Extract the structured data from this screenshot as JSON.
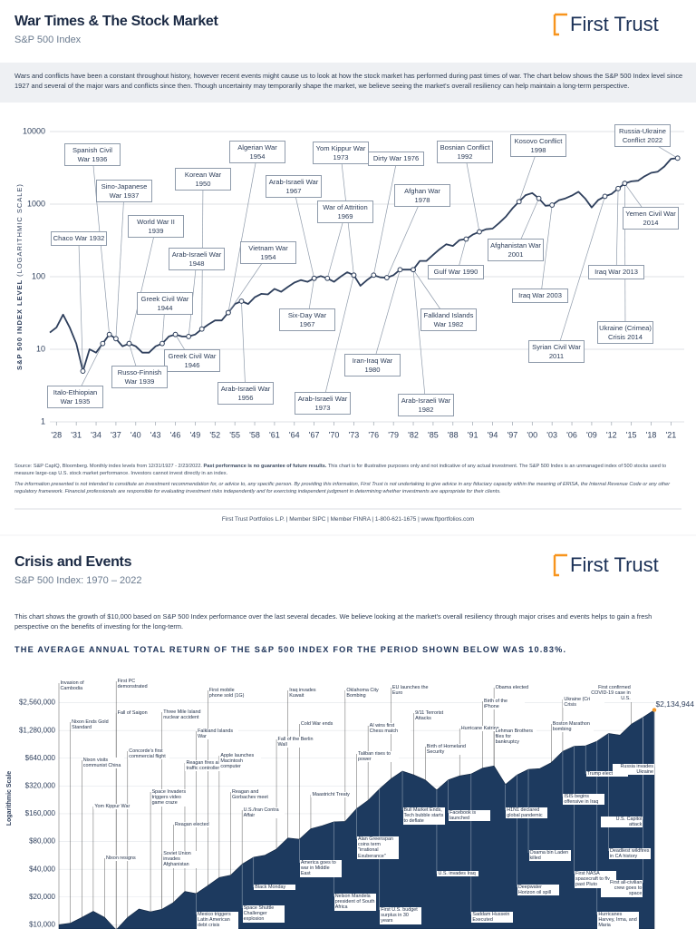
{
  "header": {
    "title": "War Times & The Stock Market",
    "subtitle": "S&P 500 Index",
    "logo": "First Trust"
  },
  "intro": "Wars and conflicts have been a constant throughout history, however recent events might cause us to look at how the stock market has performed during past times of war. The chart below shows the S&P 500 Index level since 1927 and several of the major wars and conflicts since then. Though uncertainty may temporarily shape the market, we believe seeing the market's overall resiliency can help maintain a long-term perspective.",
  "source_a": "Source: S&P CapIQ, Bloomberg. Monthly index levels from 12/31/1927 - 2/23/2022.",
  "source_bold": "Past performance is no guarantee of future results.",
  "source_b": "This chart is for illustrative purposes only and not indicative of any actual investment. The S&P 500 Index is an unmanaged index of 500 stocks used to measure large-cap U.S. stock market performance. Investors cannot invest directly in an index.",
  "disclaimer": "The information presented is not intended to constitute an investment recommendation for, or advice to, any specific person. By providing this information, First Trust is not undertaking to give advice in any fiduciary capacity within the meaning of ERISA, the Internal Revenue Code or any other regulatory framework. Financial professionals are responsible for evaluating investment risks independently and for exercising independent judgment in determining whether investments are appropriate for their clients.",
  "footer": "First Trust Portfolios L.P. | Member SIPC | Member FINRA | 1-800-621-1675 | www.ftportfolios.com",
  "section2": {
    "title": "Crisis and Events",
    "subtitle": "S&P 500 Index: 1970 – 2022",
    "logo": "First Trust",
    "intro": "This chart shows the growth of $10,000 based on S&P 500 Index performance over the last several decades. We believe looking at the market's overall resiliency through major crises and events helps to gain a fresh perspective on the benefits of investing for the long-term.",
    "headline": "THE AVERAGE ANNUAL TOTAL RETURN OF THE S&P 500 INDEX FOR THE PERIOD SHOWN BELOW WAS 10.83%."
  },
  "chart_data": [
    {
      "type": "line",
      "log_scale": true,
      "grid": true,
      "color": "#2e3f5c",
      "y_label": "S&P 500 INDEX LEVEL",
      "y_label_note": "(LOGARITHMIC SCALE)",
      "x": [
        1927,
        1928,
        1929,
        1930,
        1931,
        1932,
        1933,
        1934,
        1935,
        1936,
        1937,
        1938,
        1939,
        1940,
        1941,
        1942,
        1943,
        1944,
        1945,
        1946,
        1947,
        1948,
        1949,
        1950,
        1951,
        1952,
        1953,
        1954,
        1955,
        1956,
        1957,
        1958,
        1959,
        1960,
        1961,
        1962,
        1963,
        1964,
        1965,
        1966,
        1967,
        1968,
        1969,
        1970,
        1971,
        1972,
        1973,
        1974,
        1975,
        1976,
        1977,
        1978,
        1979,
        1980,
        1981,
        1982,
        1983,
        1984,
        1985,
        1986,
        1987,
        1988,
        1989,
        1990,
        1991,
        1992,
        1993,
        1994,
        1995,
        1996,
        1997,
        1998,
        1999,
        2000,
        2001,
        2002,
        2003,
        2004,
        2005,
        2006,
        2007,
        2008,
        2009,
        2010,
        2011,
        2012,
        2013,
        2014,
        2015,
        2016,
        2017,
        2018,
        2019,
        2020,
        2021,
        2022
      ],
      "values": [
        17,
        20,
        30,
        20,
        12,
        5,
        10,
        9,
        12,
        16,
        14,
        11,
        12,
        11,
        9,
        9,
        11,
        12,
        15,
        16,
        15,
        15,
        16,
        19,
        22,
        25,
        25,
        32,
        42,
        46,
        42,
        52,
        58,
        57,
        68,
        62,
        72,
        83,
        90,
        85,
        95,
        102,
        95,
        85,
        100,
        115,
        105,
        75,
        90,
        105,
        98,
        97,
        105,
        125,
        125,
        125,
        165,
        165,
        200,
        240,
        280,
        265,
        320,
        330,
        380,
        415,
        450,
        460,
        550,
        670,
        870,
        1080,
        1330,
        1420,
        1200,
        950,
        970,
        1130,
        1200,
        1310,
        1480,
        1200,
        900,
        1140,
        1280,
        1380,
        1640,
        1930,
        2060,
        2100,
        2420,
        2700,
        2800,
        3300,
        4200,
        4300
      ],
      "xlim": [
        1927,
        2023
      ],
      "ylim": [
        1,
        10000
      ],
      "yticks": [
        1,
        10,
        100,
        1000,
        10000
      ],
      "xticks": [
        {
          "value": 1928,
          "label": "'28"
        },
        {
          "value": 1931,
          "label": "'31"
        },
        {
          "value": 1934,
          "label": "'34"
        },
        {
          "value": 1937,
          "label": "'37"
        },
        {
          "value": 1940,
          "label": "'40"
        },
        {
          "value": 1943,
          "label": "'43"
        },
        {
          "value": 1946,
          "label": "'46"
        },
        {
          "value": 1949,
          "label": "'49"
        },
        {
          "value": 1952,
          "label": "'52"
        },
        {
          "value": 1955,
          "label": "'55"
        },
        {
          "value": 1958,
          "label": "'58"
        },
        {
          "value": 1961,
          "label": "'61"
        },
        {
          "value": 1964,
          "label": "'64"
        },
        {
          "value": 1967,
          "label": "'67"
        },
        {
          "value": 1970,
          "label": "'70"
        },
        {
          "value": 1973,
          "label": "'73"
        },
        {
          "value": 1976,
          "label": "'76"
        },
        {
          "value": 1979,
          "label": "'79"
        },
        {
          "value": 1982,
          "label": "'82"
        },
        {
          "value": 1985,
          "label": "'85"
        },
        {
          "value": 1988,
          "label": "'88"
        },
        {
          "value": 1991,
          "label": "'91"
        },
        {
          "value": 1994,
          "label": "'94"
        },
        {
          "value": 1997,
          "label": "'97"
        },
        {
          "value": 2000,
          "label": "'00"
        },
        {
          "value": 2003,
          "label": "'03"
        },
        {
          "value": 2006,
          "label": "'06"
        },
        {
          "value": 2009,
          "label": "'09"
        },
        {
          "value": 2012,
          "label": "'12"
        },
        {
          "value": 2015,
          "label": "'15"
        },
        {
          "value": 2018,
          "label": "'18"
        },
        {
          "value": 2021,
          "label": "'21"
        }
      ],
      "annotations": [
        {
          "label": "Spanish Civil War 1936",
          "x": 1936
        },
        {
          "label": "Sino-Japanese War 1937",
          "x": 1937
        },
        {
          "label": "Chaco War 1932",
          "x": 1932
        },
        {
          "label": "World War II 1939",
          "x": 1939
        },
        {
          "label": "Korean War 1950",
          "x": 1950
        },
        {
          "label": "Algerian War 1954",
          "x": 1954
        },
        {
          "label": "Arab-Israeli War 1948",
          "x": 1948
        },
        {
          "label": "Greek Civil War 1944",
          "x": 1944
        },
        {
          "label": "Vietnam War 1954",
          "x": 1954
        },
        {
          "label": "Arab-Israeli War 1967",
          "x": 1967
        },
        {
          "label": "Yom Kippur War 1973",
          "x": 1973
        },
        {
          "label": "War of Attrition 1969",
          "x": 1969
        },
        {
          "label": "Dirty War 1976",
          "x": 1976
        },
        {
          "label": "Afghan War 1978",
          "x": 1978
        },
        {
          "label": "Bosnian Conflict 1992",
          "x": 1992
        },
        {
          "label": "Kosovo Conflict 1998",
          "x": 1998
        },
        {
          "label": "Russia-Ukraine Conflict 2022",
          "x": 2022
        },
        {
          "label": "Yemen Civil War 2014",
          "x": 2014
        },
        {
          "label": "Afghanistan War 2001",
          "x": 2001
        },
        {
          "label": "Gulf War 1990",
          "x": 1990
        },
        {
          "label": "Iraq War 2013",
          "x": 2013
        },
        {
          "label": "Iraq War 2003",
          "x": 2003
        },
        {
          "label": "Six-Day War 1967",
          "x": 1967
        },
        {
          "label": "Falkland Islands War 1982",
          "x": 1982
        },
        {
          "label": "Ukraine (Crimea) Crisis 2014",
          "x": 2014
        },
        {
          "label": "Syrian Civil War 2011",
          "x": 2011
        },
        {
          "label": "Iran-Iraq War 1980",
          "x": 1980
        },
        {
          "label": "Greek Civil War 1946",
          "x": 1946
        },
        {
          "label": "Russo-Finnish War 1939",
          "x": 1939
        },
        {
          "label": "Italo-Ethiopian War 1935",
          "x": 1935
        },
        {
          "label": "Arab-Israeli War 1956",
          "x": 1956
        },
        {
          "label": "Arab-Israeli War 1973",
          "x": 1973
        },
        {
          "label": "Arab-Israeli War 1982",
          "x": 1982
        }
      ]
    },
    {
      "type": "area",
      "log_scale": true,
      "grid": true,
      "color": "#1d3a5f",
      "highlight_color": "#f7941d",
      "y_label": "Logarithmic Scale",
      "x": [
        1970,
        1971,
        1972,
        1973,
        1974,
        1975,
        1976,
        1977,
        1978,
        1979,
        1980,
        1981,
        1982,
        1983,
        1984,
        1985,
        1986,
        1987,
        1988,
        1989,
        1990,
        1991,
        1992,
        1993,
        1994,
        1995,
        1996,
        1997,
        1998,
        1999,
        2000,
        2001,
        2002,
        2003,
        2004,
        2005,
        2006,
        2007,
        2008,
        2009,
        2010,
        2011,
        2012,
        2013,
        2014,
        2015,
        2016,
        2017,
        2018,
        2019,
        2020,
        2021,
        2022
      ],
      "values": [
        10000,
        10400,
        12000,
        14000,
        12000,
        8800,
        12000,
        14800,
        13800,
        14700,
        17400,
        23000,
        21800,
        26500,
        32500,
        34500,
        45500,
        54000,
        56800,
        66200,
        87200,
        84500,
        110000,
        118500,
        130500,
        132000,
        181500,
        223000,
        297500,
        382500,
        463000,
        421000,
        371000,
        289000,
        372000,
        412000,
        432000,
        500000,
        528000,
        333000,
        421000,
        484000,
        494000,
        574000,
        759000,
        862000,
        874000,
        979000,
        1190000,
        1140000,
        1500000,
        1770000,
        2134944
      ],
      "value_labels": [
        null,
        null,
        null,
        null,
        null,
        null,
        null,
        null,
        null,
        null,
        null,
        null,
        null,
        null,
        null,
        null,
        null,
        null,
        null,
        null,
        null,
        null,
        null,
        null,
        null,
        null,
        null,
        null,
        null,
        null,
        null,
        null,
        null,
        null,
        null,
        null,
        null,
        null,
        null,
        null,
        null,
        null,
        null,
        null,
        null,
        null,
        null,
        null,
        null,
        null,
        null,
        null,
        "$2,134,944"
      ],
      "xlim": [
        1970,
        2022
      ],
      "ylim": [
        9000,
        5000000
      ],
      "yticks": [
        {
          "value": 10000,
          "label": "$10,000"
        },
        {
          "value": 20000,
          "label": "$20,000"
        },
        {
          "value": 40000,
          "label": "$40,000"
        },
        {
          "value": 80000,
          "label": "$80,000"
        },
        {
          "value": 160000,
          "label": "$160,000"
        },
        {
          "value": 320000,
          "label": "$320,000"
        },
        {
          "value": 640000,
          "label": "$640,000"
        },
        {
          "value": 1280000,
          "label": "$1,280,000"
        },
        {
          "value": 2560000,
          "label": "$2,560,000"
        }
      ],
      "annotations": [
        {
          "label": "Invasion of Cambodia",
          "x": 1970
        },
        {
          "label": "Nixon Ends Gold Standard",
          "x": 1971
        },
        {
          "label": "Nixon visits communist China",
          "x": 1972
        },
        {
          "label": "Yom Kippur War",
          "x": 1973
        },
        {
          "label": "Nixon resigns",
          "x": 1974
        },
        {
          "label": "Fall of Saigon",
          "x": 1975
        },
        {
          "label": "First PC demonstrated",
          "x": 1975
        },
        {
          "label": "Concorde's first commercial flight",
          "x": 1976
        },
        {
          "label": "Space Invaders triggers video game craze",
          "x": 1978
        },
        {
          "label": "Three Mile Island nuclear accident",
          "x": 1979
        },
        {
          "label": "Soviet Union invades Afghanistan",
          "x": 1979
        },
        {
          "label": "Reagan elected",
          "x": 1980
        },
        {
          "label": "Reagan fires air traffic controllers",
          "x": 1981
        },
        {
          "label": "Falkland Islands War",
          "x": 1982
        },
        {
          "label": "Mexico triggers Latin American debt crisis",
          "x": 1982
        },
        {
          "label": "First mobile phone sold (1G)",
          "x": 1983
        },
        {
          "label": "Apple launches Macintosh computer",
          "x": 1984
        },
        {
          "label": "Reagan and Gorbachev meet",
          "x": 1985
        },
        {
          "label": "Space Shuttle Challenger explosion",
          "x": 1986
        },
        {
          "label": "U.S./Iran Contra Affair",
          "x": 1986
        },
        {
          "label": "Black Monday",
          "x": 1987
        },
        {
          "label": "Fall of the Berlin Wall",
          "x": 1989
        },
        {
          "label": "Iraq invades Kuwait",
          "x": 1990
        },
        {
          "label": "America goes to war in Middle East",
          "x": 1991
        },
        {
          "label": "Cold War ends",
          "x": 1991
        },
        {
          "label": "Maastricht Treaty",
          "x": 1992
        },
        {
          "label": "Nelson Mandela president of South Africa",
          "x": 1994
        },
        {
          "label": "Oklahoma City Bombing",
          "x": 1995
        },
        {
          "label": "Taliban rises to power",
          "x": 1996
        },
        {
          "label": "Alan Greenspan coins term \"irrational Exuberance\"",
          "x": 1996
        },
        {
          "label": "AI wins first Chess match",
          "x": 1997
        },
        {
          "label": "First U.S. budget surplus in 30 years",
          "x": 1998
        },
        {
          "label": "EU launches the Euro",
          "x": 1999
        },
        {
          "label": "Bull Market Ends, Tech bubble starts to deflate",
          "x": 2000
        },
        {
          "label": "9/11 Terrorist Attacks",
          "x": 2001
        },
        {
          "label": "Birth of Homeland Security",
          "x": 2002
        },
        {
          "label": "U.S. invades Iraq",
          "x": 2003
        },
        {
          "label": "Facebook is launched",
          "x": 2004
        },
        {
          "label": "Hurricane Katrina",
          "x": 2005
        },
        {
          "label": "Saddam Hussein Executed",
          "x": 2006
        },
        {
          "label": "Birth of the iPhone",
          "x": 2007
        },
        {
          "label": "Lehman Brothers files for bankruptcy",
          "x": 2008
        },
        {
          "label": "Obama elected",
          "x": 2008
        },
        {
          "label": "H1N1 declared global pandemic",
          "x": 2009
        },
        {
          "label": "Deepwater Horizon oil spill",
          "x": 2010
        },
        {
          "label": "Osama bin Laden killed",
          "x": 2011
        },
        {
          "label": "Boston Marathon bombing",
          "x": 2013
        },
        {
          "label": "Ukraine (Crimea) Crisis",
          "x": 2014
        },
        {
          "label": "ISIS begins offensive in Iraq",
          "x": 2014
        },
        {
          "label": "First NASA spacecraft to fly past Pluto",
          "x": 2015
        },
        {
          "label": "Trump elected",
          "x": 2016
        },
        {
          "label": "Hurricanes Harvey, Irma, and Maria",
          "x": 2017
        },
        {
          "label": "Deadliest wildfires in CA history",
          "x": 2018
        },
        {
          "label": "First confirmed COVID-19 case in U.S.",
          "x": 2020
        },
        {
          "label": "U.S. Capitol attack",
          "x": 2021
        },
        {
          "label": "First all-civilian crew goes to space",
          "x": 2021
        },
        {
          "label": "Russia invades Ukraine",
          "x": 2022
        }
      ]
    }
  ]
}
